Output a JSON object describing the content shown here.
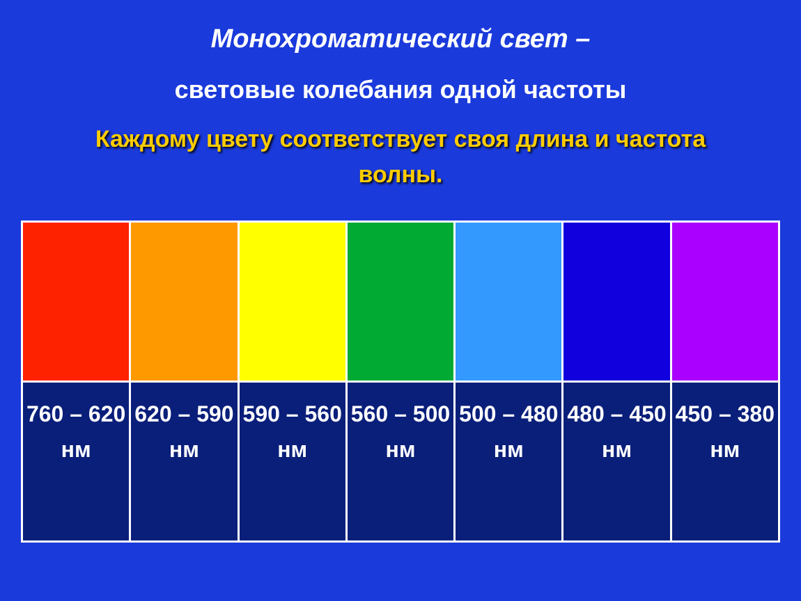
{
  "title": "Монохроматический свет –",
  "subtitle": "световые колебания одной частоты",
  "description_line1": "Каждому цвету соответствует своя длина и частота",
  "description_line2": "волны.",
  "background_color": "#1a3adb",
  "title_color": "#ffffff",
  "subtitle_color": "#ffffff",
  "description_color": "#ffcc00",
  "description_shadow": "#000000",
  "table": {
    "border_color": "#ffffff",
    "label_bg": "#0a1f7a",
    "label_color": "#ffffff",
    "columns": [
      {
        "color": "#ff2200",
        "range": "760 – 620",
        "unit": "нм"
      },
      {
        "color": "#ff9900",
        "range": "620 – 590",
        "unit": "нм"
      },
      {
        "color": "#ffff00",
        "range": "590 – 560",
        "unit": "нм"
      },
      {
        "color": "#00aa33",
        "range": "560 – 500",
        "unit": "нм"
      },
      {
        "color": "#3399ff",
        "range": "500 – 480",
        "unit": "нм"
      },
      {
        "color": "#1100dd",
        "range": "480 – 450",
        "unit": "нм"
      },
      {
        "color": "#aa00ff",
        "range": "450 – 380",
        "unit": "нм"
      }
    ]
  },
  "title_fontsize": 38,
  "subtitle_fontsize": 36,
  "description_fontsize": 34,
  "label_fontsize": 32
}
